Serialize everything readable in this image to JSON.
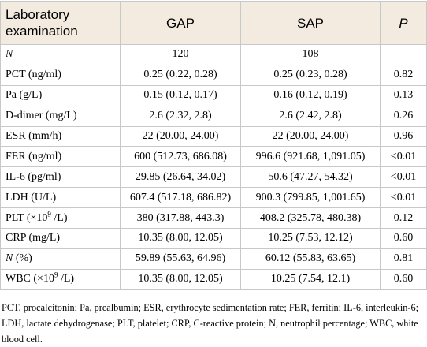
{
  "table": {
    "header": [
      [
        {
          "text": "Laboratory examination"
        }
      ],
      [
        {
          "text": "GAP"
        }
      ],
      [
        {
          "text": "SAP"
        }
      ],
      [
        {
          "text": "P",
          "style": "italic"
        }
      ]
    ],
    "rows": [
      [
        [
          {
            "text": "N",
            "style": "italic"
          }
        ],
        "120",
        "108",
        ""
      ],
      [
        [
          {
            "text": "PCT (ng/ml)"
          }
        ],
        "0.25 (0.22, 0.28)",
        "0.25 (0.23, 0.28)",
        "0.82"
      ],
      [
        [
          {
            "text": "Pa (g/L)"
          }
        ],
        "0.15 (0.12, 0.17)",
        "0.16 (0.12, 0.19)",
        "0.13"
      ],
      [
        [
          {
            "text": "D-dimer (mg/L)"
          }
        ],
        "2.6 (2.32, 2.8)",
        "2.6 (2.42, 2.8)",
        "0.26"
      ],
      [
        [
          {
            "text": "ESR (mm/h)"
          }
        ],
        "22 (20.00, 24.00)",
        "22 (20.00, 24.00)",
        "0.96"
      ],
      [
        [
          {
            "text": "FER (ng/ml)"
          }
        ],
        "600 (512.73, 686.08)",
        "996.6 (921.68, 1,091.05)",
        "<0.01"
      ],
      [
        [
          {
            "text": "IL-6 (pg/ml)"
          }
        ],
        "29.85 (26.64, 34.02)",
        "50.6 (47.27, 54.32)",
        "<0.01"
      ],
      [
        [
          {
            "text": "LDH (U/L)"
          }
        ],
        "607.4 (517.18, 686.82)",
        "900.3 (799.85, 1,001.65)",
        "<0.01"
      ],
      [
        [
          {
            "text": "PLT (×10"
          },
          {
            "text": "9",
            "style": "sup"
          },
          {
            "text": " /L)"
          }
        ],
        "380 (317.88, 443.3)",
        "408.2 (325.78, 480.38)",
        "0.12"
      ],
      [
        [
          {
            "text": "CRP (mg/L)"
          }
        ],
        "10.35 (8.00, 12.05)",
        "10.25 (7.53, 12.12)",
        "0.60"
      ],
      [
        [
          {
            "text": "N",
            "style": "italic"
          },
          {
            "text": " (%)"
          }
        ],
        "59.89 (55.63, 64.96)",
        "60.12 (55.83, 63.65)",
        "0.81"
      ],
      [
        [
          {
            "text": "WBC (×10"
          },
          {
            "text": "9",
            "style": "sup"
          },
          {
            "text": " /L)"
          }
        ],
        "10.35 (8.00, 12.05)",
        "10.25 (7.54, 12.1)",
        "0.60"
      ]
    ]
  },
  "footnote": "PCT, procalcitonin; Pa, prealbumin; ESR, erythrocyte sedimentation rate; FER, ferritin; IL-6, interleukin-6; LDH, lactate dehydrogenase; PLT, platelet; CRP, C-reactive protein; N, neutrophil percentage; WBC, white blood cell."
}
